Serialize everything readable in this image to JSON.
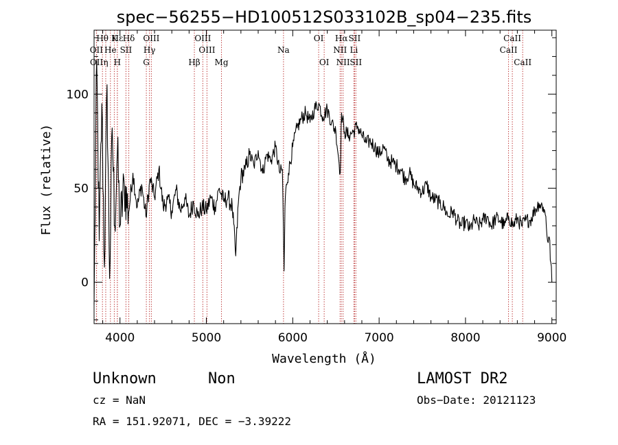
{
  "chart_data": {
    "type": "line",
    "title": "spec−56255−HD100512S033102B_sp04−235.fits",
    "xlabel": "Wavelength (Å)",
    "ylabel": "Flux (relative)",
    "xlim": [
      3700,
      9050
    ],
    "ylim": [
      -22,
      134
    ],
    "xticks": [
      4000,
      5000,
      6000,
      7000,
      8000,
      9000
    ],
    "yticks": [
      0,
      50,
      100
    ],
    "series": [
      {
        "x": [
          3700,
          3730,
          3760,
          3790,
          3820,
          3850,
          3880,
          3910,
          3940,
          3970,
          4000,
          4050,
          4100,
          4150,
          4200,
          4250,
          4300,
          4350,
          4400,
          4450,
          4500,
          4550,
          4600,
          4650,
          4700,
          4750,
          4800,
          4850,
          4900,
          4950,
          5000,
          5050,
          5100,
          5150,
          5200,
          5250,
          5300,
          5340,
          5370,
          5400,
          5450,
          5500,
          5550,
          5600,
          5650,
          5700,
          5750,
          5800,
          5850,
          5880,
          5900,
          5910,
          5925,
          5950,
          6000,
          6050,
          6100,
          6150,
          6200,
          6250,
          6300,
          6350,
          6400,
          6450,
          6500,
          6550,
          6565,
          6600,
          6650,
          6700,
          6750,
          6800,
          6850,
          6900,
          6950,
          7000,
          7050,
          7100,
          7150,
          7200,
          7250,
          7300,
          7350,
          7400,
          7450,
          7500,
          7550,
          7600,
          7650,
          7700,
          7750,
          7800,
          7850,
          7900,
          7950,
          8000,
          8050,
          8100,
          8150,
          8200,
          8250,
          8300,
          8350,
          8400,
          8450,
          8500,
          8550,
          8600,
          8650,
          8700,
          8750,
          8800,
          8850,
          8900,
          8930,
          8950,
          8970,
          9000
        ],
        "y": [
          -12,
          118,
          22,
          95,
          8,
          105,
          2,
          82,
          30,
          70,
          30,
          52,
          37,
          58,
          40,
          52,
          35,
          55,
          45,
          60,
          40,
          44,
          38,
          49,
          38,
          45,
          35,
          43,
          35,
          40,
          38,
          45,
          40,
          50,
          43,
          45,
          40,
          14,
          42,
          56,
          60,
          68,
          62,
          70,
          58,
          68,
          65,
          72,
          58,
          60,
          6,
          40,
          52,
          58,
          72,
          82,
          87,
          90,
          85,
          92,
          95,
          88,
          92,
          85,
          80,
          58,
          90,
          80,
          78,
          80,
          83,
          78,
          74,
          75,
          72,
          68,
          72,
          65,
          64,
          62,
          60,
          55,
          58,
          52,
          50,
          48,
          52,
          45,
          44,
          42,
          40,
          35,
          38,
          33,
          30,
          32,
          28,
          33,
          30,
          33,
          35,
          30,
          34,
          33,
          30,
          35,
          30,
          34,
          30,
          33,
          33,
          38,
          42,
          40,
          35,
          22,
          24,
          0
        ]
      }
    ],
    "line_markers": [
      {
        "label": "Hθ",
        "x": 3797,
        "row": 0
      },
      {
        "label": "OII",
        "x": 3727,
        "row": 1
      },
      {
        "label": "OII",
        "x": 3729,
        "row": 2
      },
      {
        "label": "Hε",
        "x": 3970,
        "row": 0
      },
      {
        "label": "He",
        "x": 3889,
        "row": 1
      },
      {
        "label": "η",
        "x": 3835,
        "row": 2
      },
      {
        "label": "K",
        "x": 3934,
        "row": 0
      },
      {
        "label": "SII",
        "x": 4069,
        "row": 1
      },
      {
        "label": "H",
        "x": 3969,
        "row": 2
      },
      {
        "label": "Hδ",
        "x": 4102,
        "row": 0
      },
      {
        "label": "OIII",
        "x": 4363,
        "row": 0
      },
      {
        "label": "Hγ",
        "x": 4341,
        "row": 1
      },
      {
        "label": "G",
        "x": 4305,
        "row": 2
      },
      {
        "label": "Hβ",
        "x": 4861,
        "row": 2
      },
      {
        "label": "OIII",
        "x": 4959,
        "row": 0
      },
      {
        "label": "OIII",
        "x": 5007,
        "row": 1
      },
      {
        "label": "Mg",
        "x": 5175,
        "row": 2
      },
      {
        "label": "Na",
        "x": 5893,
        "row": 1
      },
      {
        "label": "OI",
        "x": 6300,
        "row": 0
      },
      {
        "label": "OI",
        "x": 6364,
        "row": 2
      },
      {
        "label": "Hα",
        "x": 6563,
        "row": 0
      },
      {
        "label": "NII",
        "x": 6548,
        "row": 1
      },
      {
        "label": "NII",
        "x": 6583,
        "row": 2
      },
      {
        "label": "SII",
        "x": 6716,
        "row": 0
      },
      {
        "label": "Li",
        "x": 6708,
        "row": 1
      },
      {
        "label": "SII",
        "x": 6731,
        "row": 2
      },
      {
        "label": "CaII",
        "x": 8542,
        "row": 0
      },
      {
        "label": "CaII",
        "x": 8498,
        "row": 1
      },
      {
        "label": "CaII",
        "x": 8662,
        "row": 2
      }
    ]
  },
  "info": {
    "object_type": "Unknown",
    "object_class": "Non",
    "cz": "cz = NaN",
    "coords": "RA = 151.92071, DEC =  −3.39222",
    "survey": "LAMOST DR2",
    "obs_date": "Obs−Date: 20121123"
  }
}
